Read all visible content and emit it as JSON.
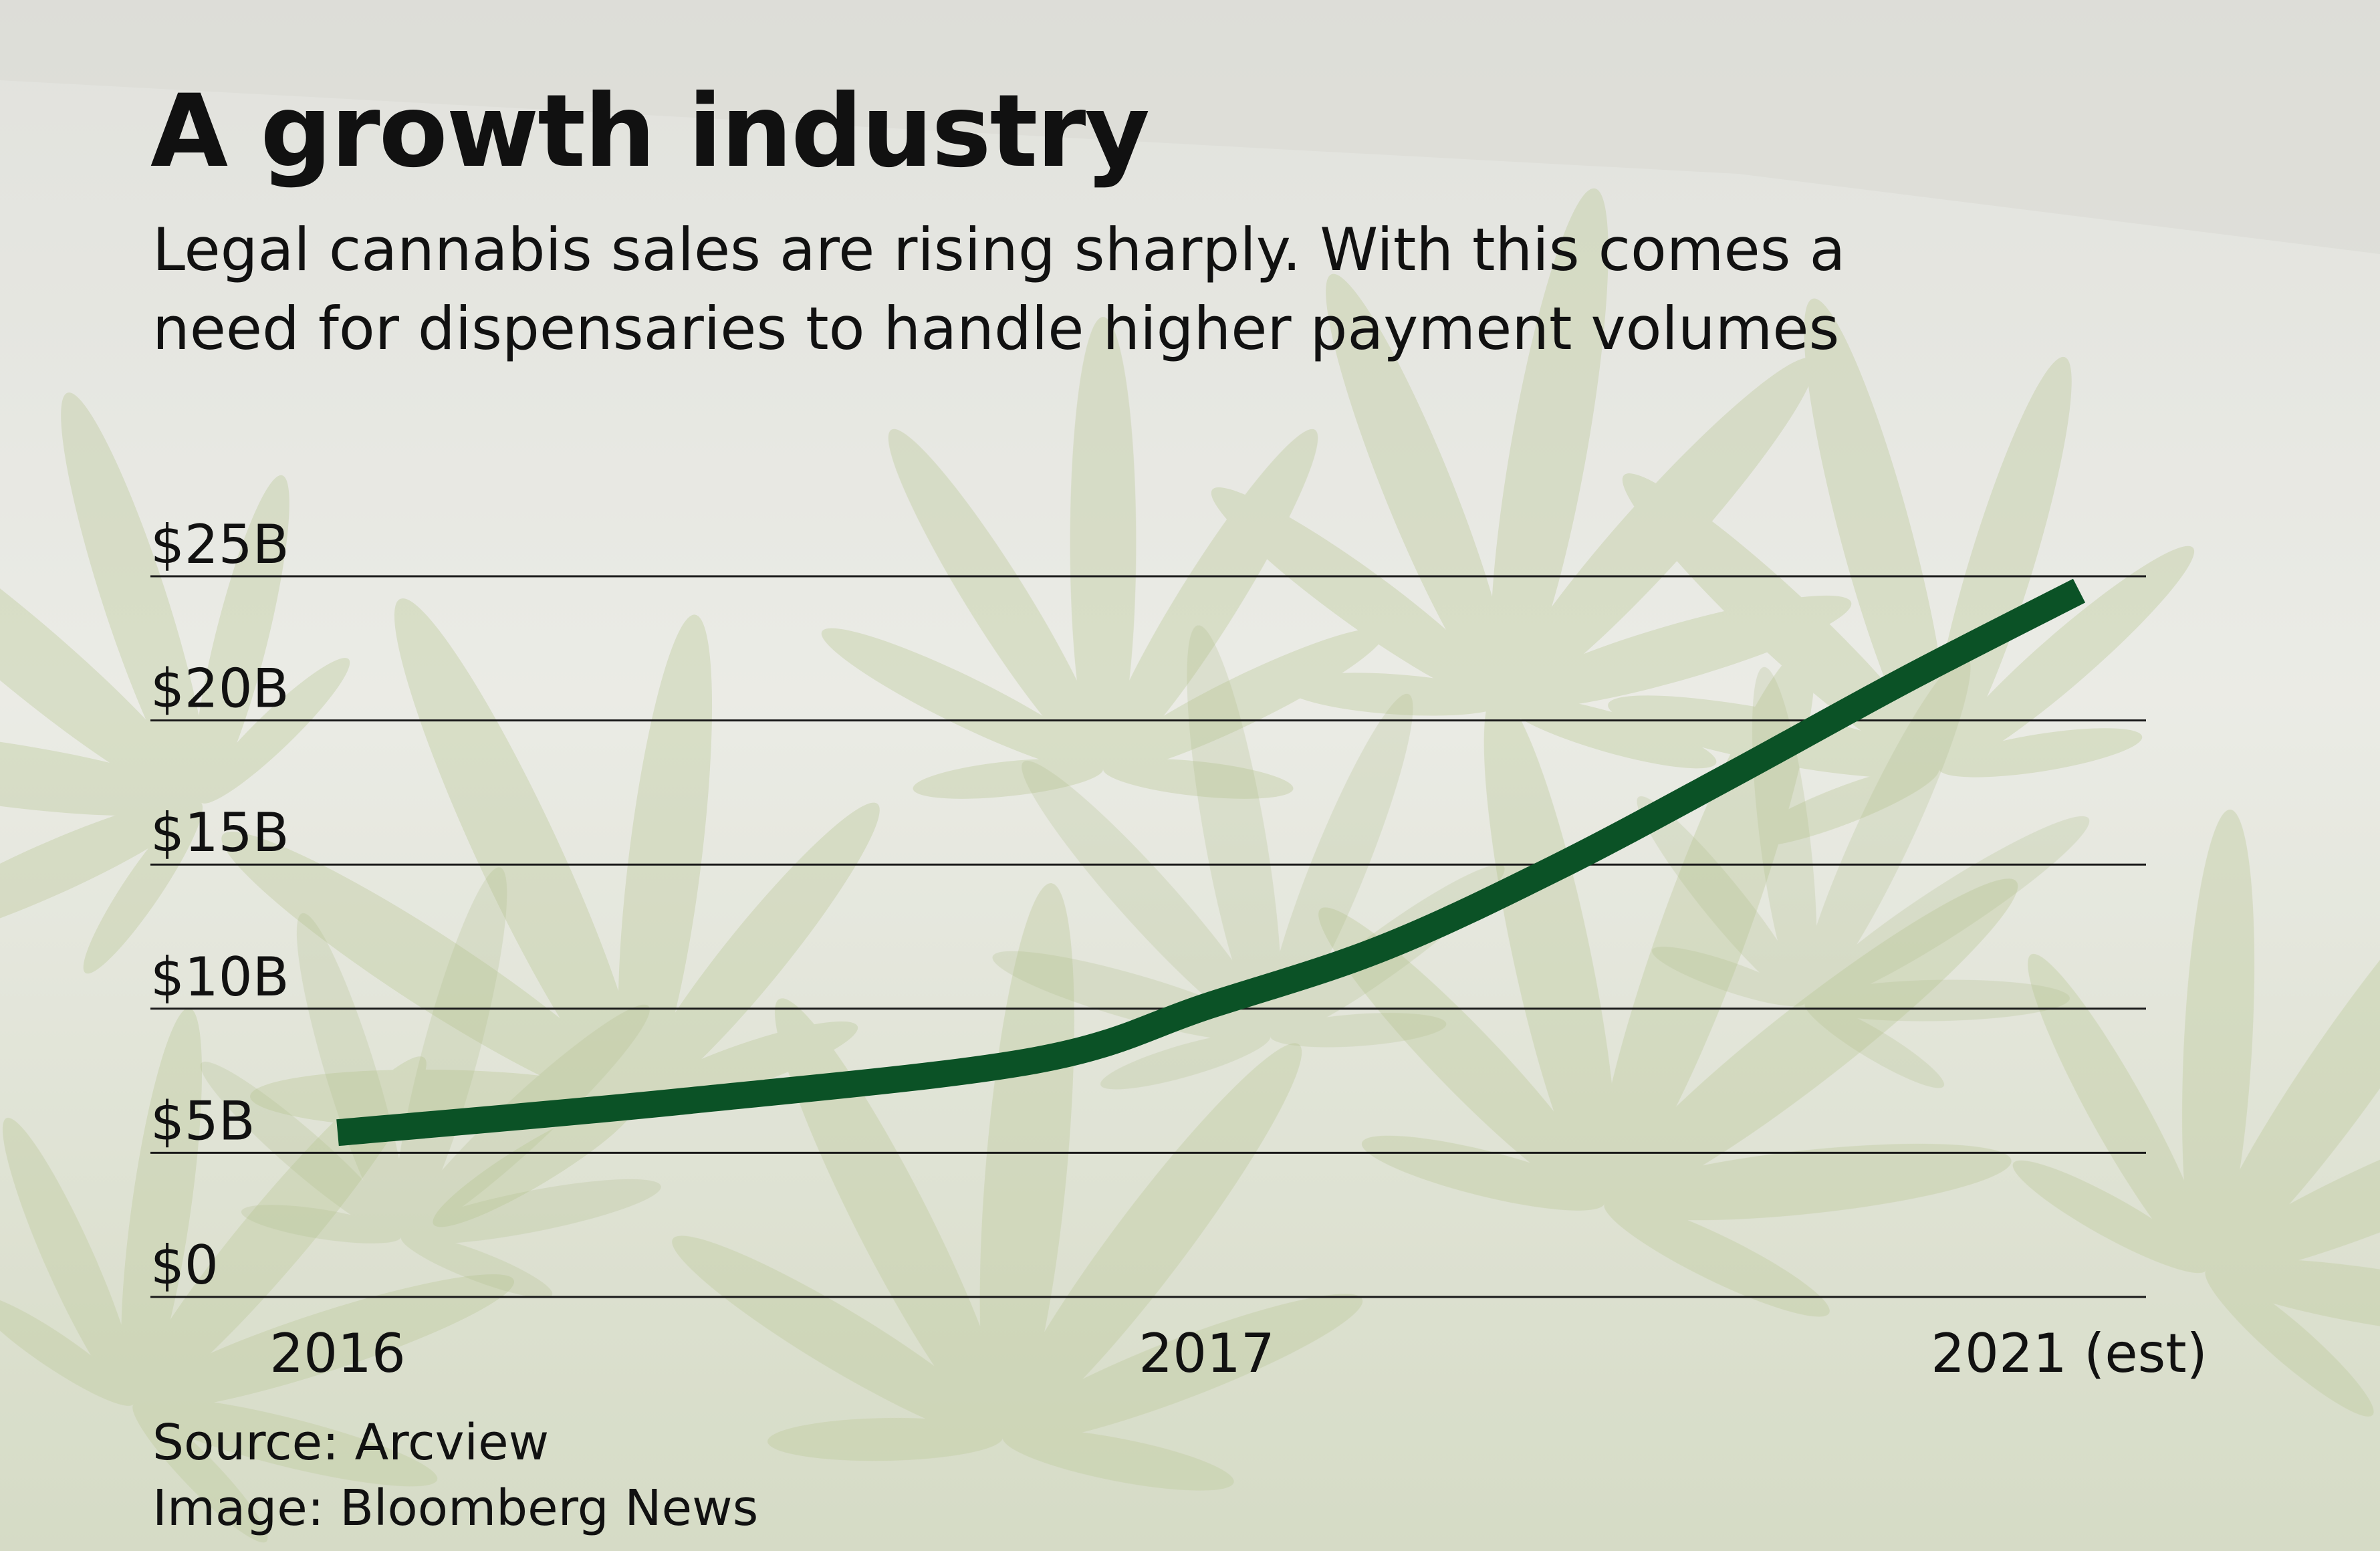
{
  "title": "A growth industry",
  "subtitle_lines": [
    "Legal cannabis sales are rising sharply. With this comes a",
    "need for dispensaries to handle higher payment volumes"
  ],
  "colors": {
    "line": "#0b5226",
    "gridline": "#1a1a1a",
    "background_top": "#d9dad3",
    "background_bottom": "#c9d1b3",
    "foliage": "#9fb36a"
  },
  "chart_data": {
    "type": "line",
    "title": "A growth industry",
    "xlabel": "",
    "ylabel": "",
    "categories": [
      "2016",
      "2017",
      "2021 (est)"
    ],
    "y_tick_labels": [
      "$0",
      "$5B",
      "$10B",
      "$15B",
      "$20B",
      "$25B"
    ],
    "y_tick_values": [
      0,
      5,
      10,
      15,
      20,
      25
    ],
    "ylim": [
      0,
      25
    ],
    "grid": true,
    "legend": "none",
    "series": [
      {
        "values": [
          5.7,
          10.1,
          24.5
        ],
        "curve": [
          {
            "x": 0.0,
            "y": 5.7
          },
          {
            "x": 0.2,
            "y": 6.8
          },
          {
            "x": 0.4,
            "y": 8.2
          },
          {
            "x": 0.5,
            "y": 10.1
          },
          {
            "x": 0.6,
            "y": 12.1
          },
          {
            "x": 0.7,
            "y": 14.9
          },
          {
            "x": 0.8,
            "y": 18.1
          },
          {
            "x": 0.9,
            "y": 21.4
          },
          {
            "x": 1.0,
            "y": 24.5
          }
        ]
      }
    ]
  },
  "footer": {
    "source": "Source: Arcview",
    "image_credit": "Image: Bloomberg News"
  }
}
